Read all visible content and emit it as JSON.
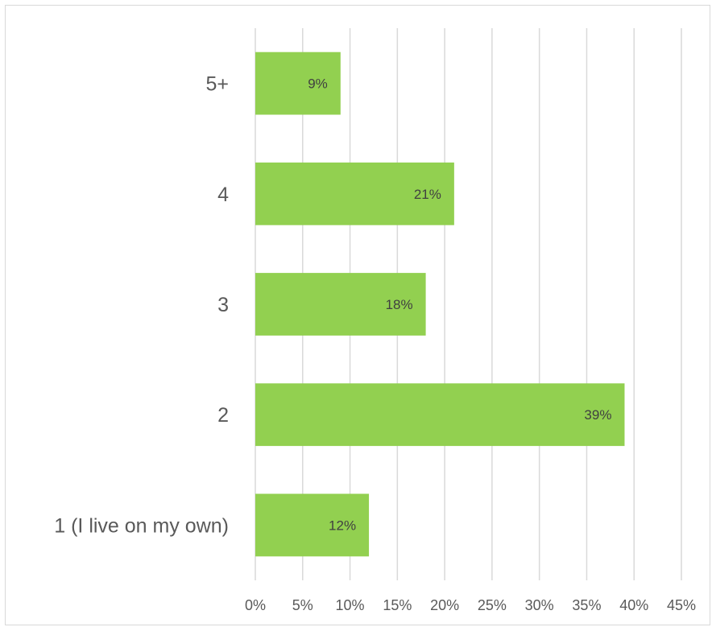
{
  "chart_data": {
    "type": "bar",
    "orientation": "horizontal",
    "categories": [
      "5+",
      "4",
      "3",
      "2",
      "1 (I live on my own)"
    ],
    "values": [
      9,
      21,
      18,
      39,
      12
    ],
    "value_labels": [
      "9%",
      "21%",
      "18%",
      "39%",
      "12%"
    ],
    "x_ticks": [
      "0%",
      "5%",
      "10%",
      "15%",
      "20%",
      "25%",
      "30%",
      "35%",
      "40%",
      "45%"
    ],
    "xlim": [
      0,
      45
    ],
    "grid": true,
    "bar_color": "#92d050",
    "grid_color": "#d9d9d9",
    "text_color": "#595959"
  }
}
